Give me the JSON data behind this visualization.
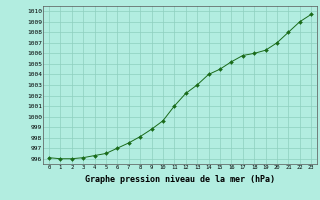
{
  "x": [
    0,
    1,
    2,
    3,
    4,
    5,
    6,
    7,
    8,
    9,
    10,
    11,
    12,
    13,
    14,
    15,
    16,
    17,
    18,
    19,
    20,
    21,
    22,
    23
  ],
  "y": [
    996.1,
    996.0,
    996.0,
    996.1,
    996.3,
    996.5,
    997.0,
    997.5,
    998.1,
    998.8,
    999.6,
    1001.0,
    1002.2,
    1003.0,
    1004.0,
    1004.5,
    1005.2,
    1005.8,
    1006.0,
    1006.3,
    1007.0,
    1008.0,
    1009.0,
    1009.7
  ],
  "line_color": "#1a6b1a",
  "marker_color": "#1a6b1a",
  "bg_color": "#b2ede0",
  "grid_color": "#8ecfbe",
  "title": "Graphe pression niveau de la mer (hPa)",
  "ylim": [
    995.5,
    1010.5
  ],
  "xlim": [
    -0.5,
    23.5
  ],
  "yticks": [
    996,
    997,
    998,
    999,
    1000,
    1001,
    1002,
    1003,
    1004,
    1005,
    1006,
    1007,
    1008,
    1009,
    1010
  ],
  "xticks": [
    0,
    1,
    2,
    3,
    4,
    5,
    6,
    7,
    8,
    9,
    10,
    11,
    12,
    13,
    14,
    15,
    16,
    17,
    18,
    19,
    20,
    21,
    22,
    23
  ]
}
